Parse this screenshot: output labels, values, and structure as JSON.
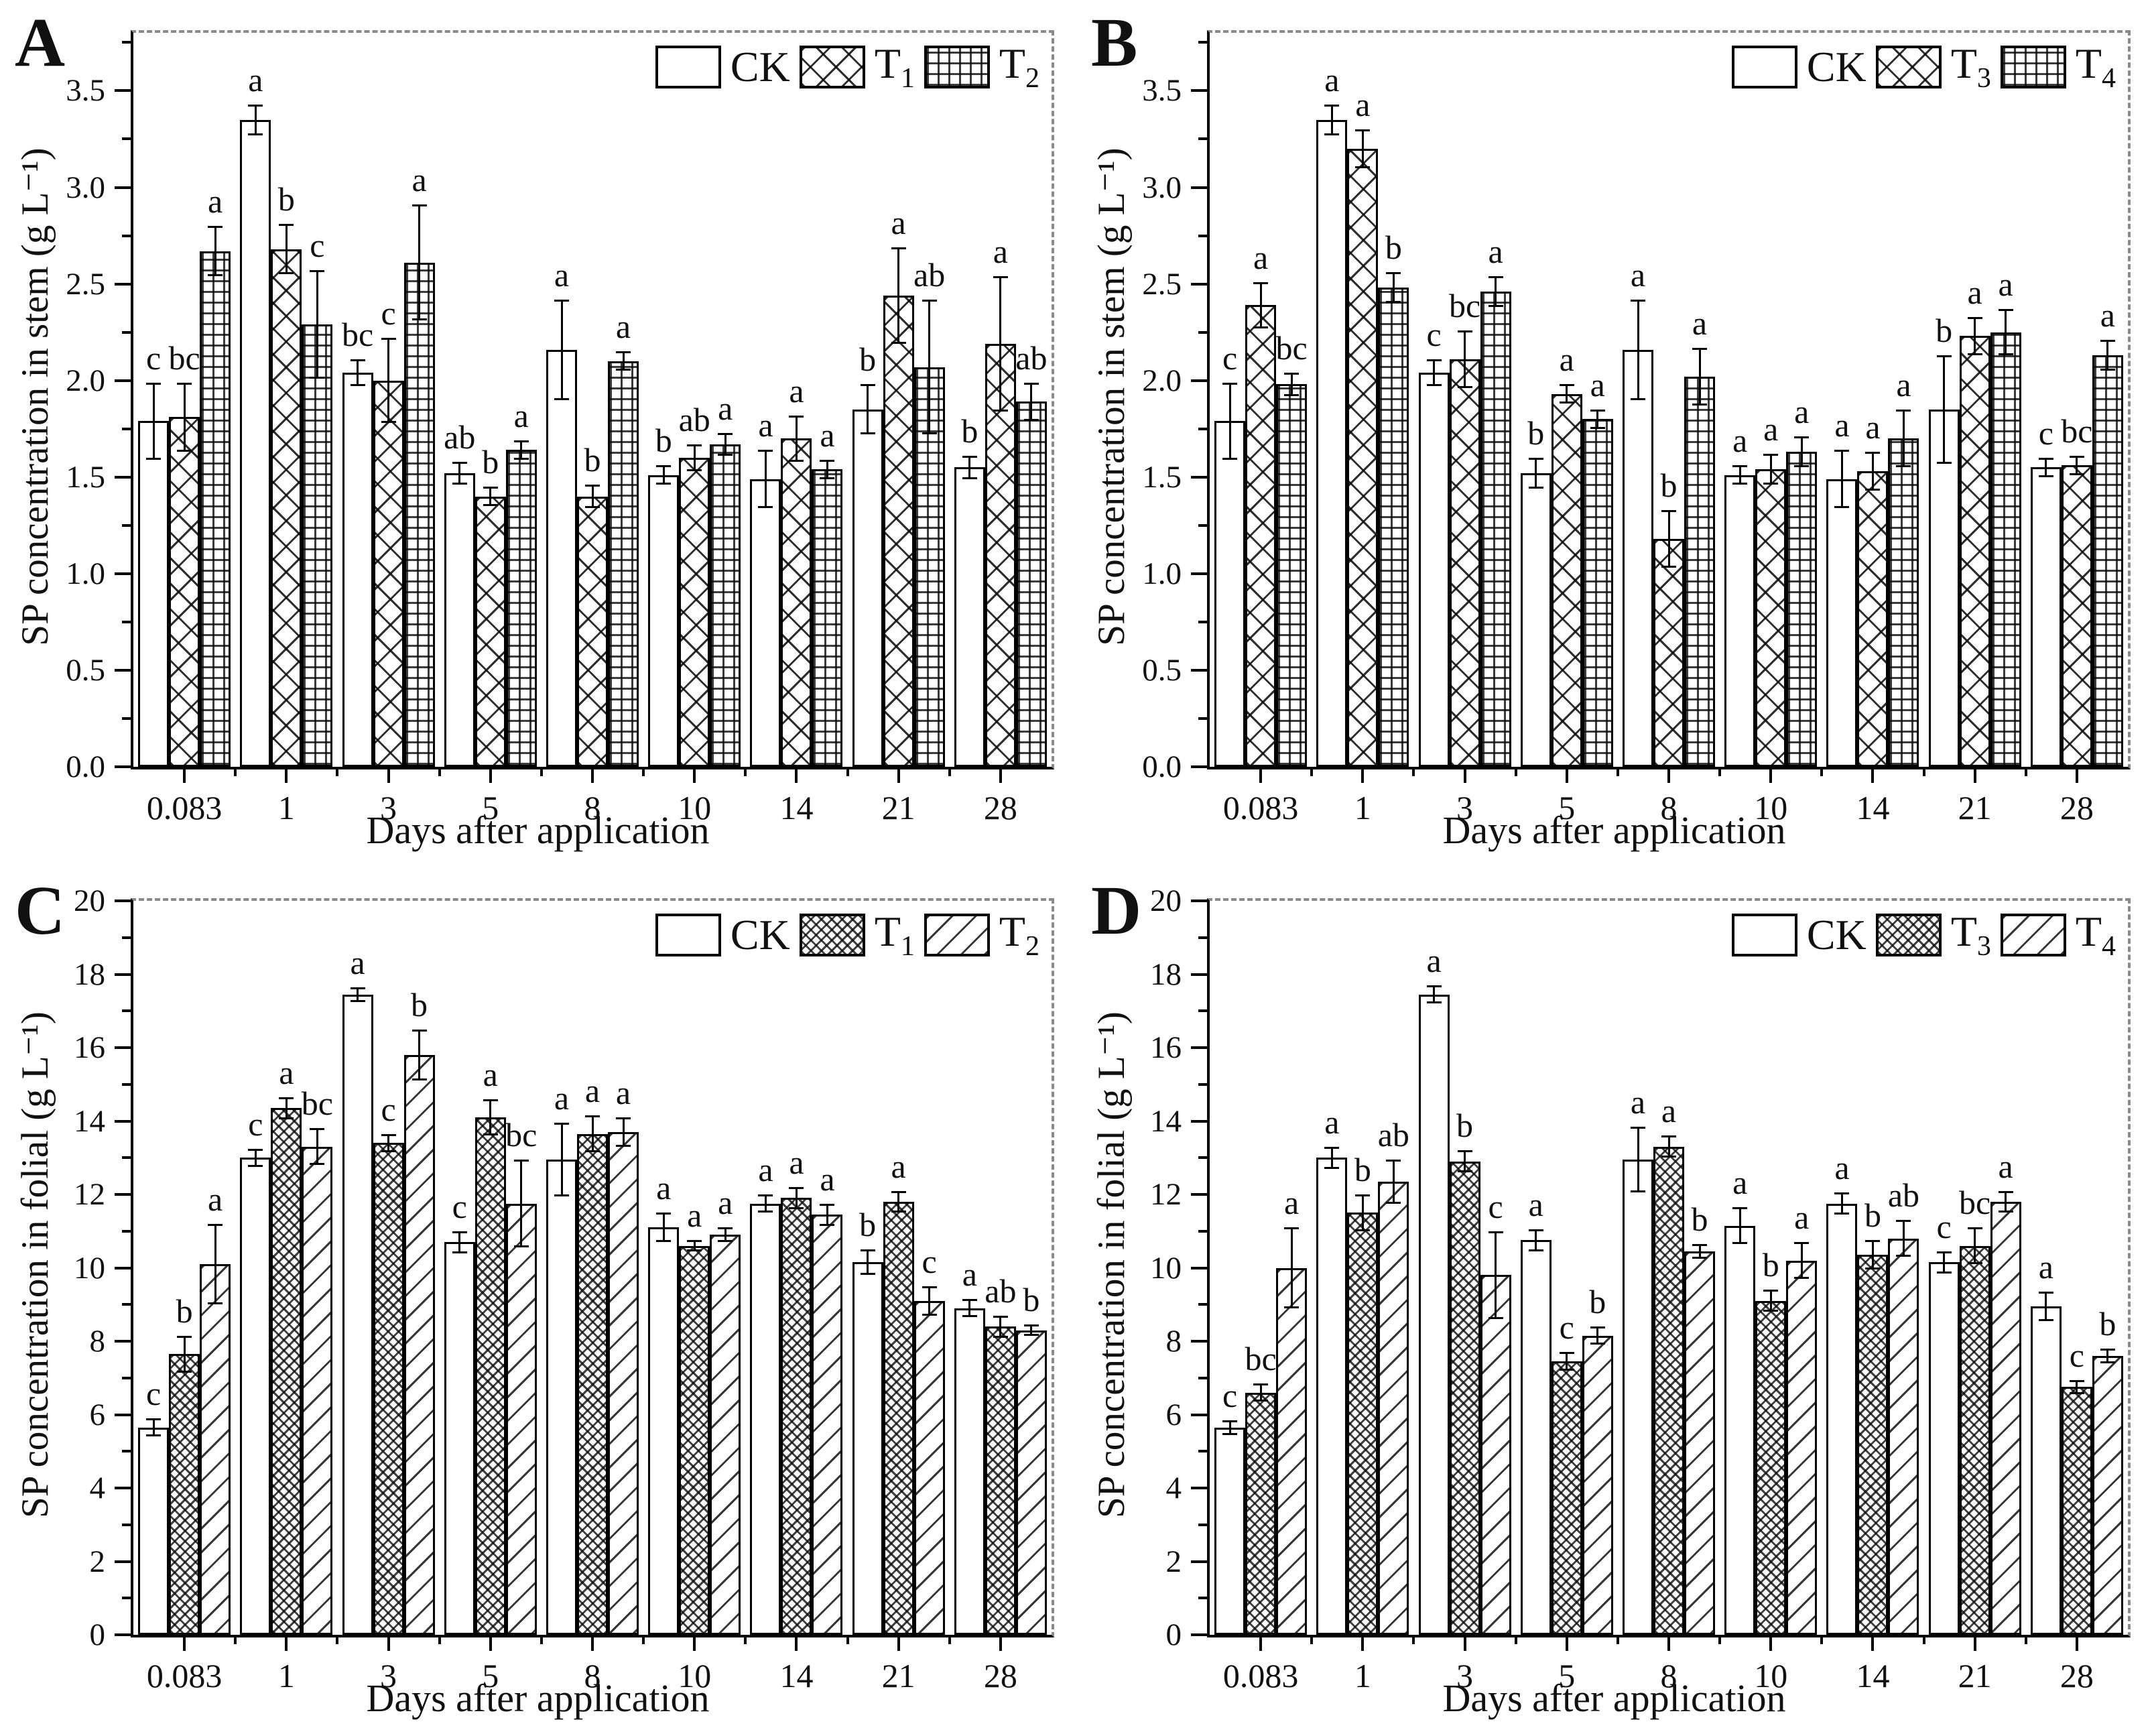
{
  "figure_title": "",
  "xlabel_shared": "Days after application",
  "chart_data": [
    {
      "panel_letter": "A",
      "type": "bar",
      "title": "SP concentration in stem - CK vs T1 vs T2",
      "ylabel": "SP concentration in stem (g L⁻¹)",
      "xlabel": "Days after application",
      "ylim": [
        0,
        3.8
      ],
      "grid": false,
      "legend_position": "top-right",
      "y_tick_values": [
        0,
        0.5,
        1.0,
        1.5,
        2.0,
        2.5,
        3.0,
        3.5
      ],
      "y_tick_labels": [
        "0.0",
        "0.5",
        "1.0",
        "1.5",
        "2.0",
        "2.5",
        "3.0",
        "3.5"
      ],
      "y_minor_step": 0.25,
      "categories": [
        "0.083",
        "1",
        "3",
        "5",
        "8",
        "10",
        "14",
        "21",
        "28"
      ],
      "legend": [
        {
          "text": "CK",
          "sub": "",
          "pattern": "plain"
        },
        {
          "text": "T",
          "sub": "1",
          "pattern": "crosshatch"
        },
        {
          "text": "T",
          "sub": "2",
          "pattern": "grid"
        }
      ],
      "series": [
        {
          "name": "CK",
          "pattern": "plain",
          "values": [
            1.79,
            3.35,
            2.04,
            1.52,
            2.16,
            1.51,
            1.49,
            1.85,
            1.55
          ],
          "errors": [
            0.2,
            0.08,
            0.07,
            0.06,
            0.26,
            0.05,
            0.15,
            0.13,
            0.06
          ],
          "letters": [
            "c",
            "a",
            "bc",
            "ab",
            "a",
            "b",
            "a",
            "b",
            "b"
          ]
        },
        {
          "name": "T1",
          "pattern": "crosshatch",
          "values": [
            1.81,
            2.68,
            2.0,
            1.4,
            1.4,
            1.6,
            1.7,
            2.44,
            2.19
          ],
          "errors": [
            0.18,
            0.13,
            0.22,
            0.05,
            0.06,
            0.07,
            0.12,
            0.25,
            0.35
          ],
          "letters": [
            "bc",
            "b",
            "c",
            "b",
            "b",
            "ab",
            "a",
            "a",
            "a"
          ]
        },
        {
          "name": "T2",
          "pattern": "grid",
          "values": [
            2.67,
            2.29,
            2.61,
            1.64,
            2.1,
            1.67,
            1.54,
            2.07,
            1.89
          ],
          "errors": [
            0.13,
            0.28,
            0.3,
            0.05,
            0.05,
            0.06,
            0.05,
            0.35,
            0.1
          ],
          "letters": [
            "a",
            "c",
            "a",
            "a",
            "a",
            "a",
            "a",
            "ab",
            "ab"
          ]
        }
      ]
    },
    {
      "panel_letter": "B",
      "type": "bar",
      "title": "SP concentration in stem - CK vs T3 vs T4",
      "ylabel": "SP concentration in stem (g L⁻¹)",
      "xlabel": "Days after application",
      "ylim": [
        0,
        3.8
      ],
      "grid": false,
      "legend_position": "top-right",
      "y_tick_values": [
        0,
        0.5,
        1.0,
        1.5,
        2.0,
        2.5,
        3.0,
        3.5
      ],
      "y_tick_labels": [
        "0.0",
        "0.5",
        "1.0",
        "1.5",
        "2.0",
        "2.5",
        "3.0",
        "3.5"
      ],
      "y_minor_step": 0.25,
      "categories": [
        "0.083",
        "1",
        "3",
        "5",
        "8",
        "10",
        "14",
        "21",
        "28"
      ],
      "legend": [
        {
          "text": "CK",
          "sub": "",
          "pattern": "plain"
        },
        {
          "text": "T",
          "sub": "3",
          "pattern": "crosshatch"
        },
        {
          "text": "T",
          "sub": "4",
          "pattern": "grid"
        }
      ],
      "series": [
        {
          "name": "CK",
          "pattern": "plain",
          "values": [
            1.79,
            3.35,
            2.04,
            1.52,
            2.16,
            1.51,
            1.49,
            1.85,
            1.55
          ],
          "errors": [
            0.2,
            0.08,
            0.07,
            0.08,
            0.26,
            0.05,
            0.15,
            0.28,
            0.05
          ],
          "letters": [
            "c",
            "a",
            "c",
            "b",
            "a",
            "a",
            "a",
            "b",
            "c"
          ]
        },
        {
          "name": "T3",
          "pattern": "crosshatch",
          "values": [
            2.39,
            3.2,
            2.11,
            1.93,
            1.18,
            1.54,
            1.53,
            2.23,
            1.56
          ],
          "errors": [
            0.12,
            0.1,
            0.15,
            0.05,
            0.15,
            0.08,
            0.1,
            0.1,
            0.05
          ],
          "letters": [
            "a",
            "a",
            "bc",
            "a",
            "b",
            "a",
            "a",
            "a",
            "bc"
          ]
        },
        {
          "name": "T4",
          "pattern": "grid",
          "values": [
            1.98,
            2.48,
            2.46,
            1.8,
            2.02,
            1.63,
            1.7,
            2.25,
            2.13
          ],
          "errors": [
            0.06,
            0.08,
            0.08,
            0.05,
            0.15,
            0.08,
            0.15,
            0.12,
            0.08
          ],
          "letters": [
            "bc",
            "b",
            "a",
            "a",
            "a",
            "a",
            "a",
            "a",
            "a"
          ]
        }
      ]
    },
    {
      "panel_letter": "C",
      "type": "bar",
      "title": "SP concentration in folial - CK vs T1 vs T2",
      "ylabel": "SP concentration in folial (g L⁻¹)",
      "xlabel": "Days after application",
      "ylim": [
        0,
        20
      ],
      "grid": false,
      "legend_position": "top-right",
      "y_tick_values": [
        0,
        2,
        4,
        6,
        8,
        10,
        12,
        14,
        16,
        18,
        20
      ],
      "y_tick_labels": [
        "0",
        "2",
        "4",
        "6",
        "8",
        "10",
        "12",
        "14",
        "16",
        "18",
        "20"
      ],
      "y_minor_step": 1,
      "categories": [
        "0.083",
        "1",
        "3",
        "5",
        "8",
        "10",
        "14",
        "21",
        "28"
      ],
      "legend": [
        {
          "text": "CK",
          "sub": "",
          "pattern": "plain"
        },
        {
          "text": "T",
          "sub": "1",
          "pattern": "checker"
        },
        {
          "text": "T",
          "sub": "2",
          "pattern": "diagonal"
        }
      ],
      "series": [
        {
          "name": "CK",
          "pattern": "plain",
          "values": [
            5.65,
            13.0,
            17.45,
            10.7,
            12.95,
            11.1,
            11.75,
            10.15,
            8.9
          ],
          "errors": [
            0.25,
            0.25,
            0.2,
            0.3,
            1.0,
            0.4,
            0.25,
            0.35,
            0.25
          ],
          "letters": [
            "c",
            "c",
            "a",
            "c",
            "a",
            "a",
            "a",
            "b",
            "a"
          ]
        },
        {
          "name": "T1",
          "pattern": "checker",
          "values": [
            7.65,
            14.35,
            13.4,
            14.1,
            13.65,
            10.6,
            11.9,
            11.8,
            8.4
          ],
          "errors": [
            0.5,
            0.3,
            0.25,
            0.5,
            0.5,
            0.15,
            0.3,
            0.3,
            0.3
          ],
          "letters": [
            "b",
            "a",
            "c",
            "a",
            "a",
            "a",
            "a",
            "a",
            "ab"
          ]
        },
        {
          "name": "T2",
          "pattern": "diagonal",
          "values": [
            10.1,
            13.3,
            15.8,
            11.75,
            13.7,
            10.9,
            11.45,
            9.1,
            8.3
          ],
          "errors": [
            1.1,
            0.5,
            0.7,
            1.2,
            0.4,
            0.2,
            0.3,
            0.4,
            0.15
          ],
          "letters": [
            "a",
            "bc",
            "b",
            "bc",
            "a",
            "a",
            "a",
            "c",
            "b"
          ]
        }
      ]
    },
    {
      "panel_letter": "D",
      "type": "bar",
      "title": "SP concentration in folial - CK vs T3 vs T4",
      "ylabel": "SP concentration in folial (g L⁻¹)",
      "xlabel": "Days after application",
      "ylim": [
        0,
        20
      ],
      "grid": false,
      "legend_position": "top-right",
      "y_tick_values": [
        0,
        2,
        4,
        6,
        8,
        10,
        12,
        14,
        16,
        18,
        20
      ],
      "y_tick_labels": [
        "0",
        "2",
        "4",
        "6",
        "8",
        "10",
        "12",
        "14",
        "16",
        "18",
        "20"
      ],
      "y_minor_step": 1,
      "categories": [
        "0.083",
        "1",
        "3",
        "5",
        "8",
        "10",
        "14",
        "21",
        "28"
      ],
      "legend": [
        {
          "text": "CK",
          "sub": "",
          "pattern": "plain"
        },
        {
          "text": "T",
          "sub": "3",
          "pattern": "checker"
        },
        {
          "text": "T",
          "sub": "4",
          "pattern": "diagonal"
        }
      ],
      "series": [
        {
          "name": "CK",
          "pattern": "plain",
          "values": [
            5.65,
            13.0,
            17.45,
            10.75,
            12.95,
            11.15,
            11.75,
            10.15,
            8.95
          ],
          "errors": [
            0.2,
            0.3,
            0.25,
            0.3,
            0.9,
            0.5,
            0.3,
            0.3,
            0.4
          ],
          "letters": [
            "c",
            "a",
            "a",
            "a",
            "a",
            "a",
            "a",
            "c",
            "a"
          ]
        },
        {
          "name": "T3",
          "pattern": "checker",
          "values": [
            6.6,
            11.5,
            12.9,
            7.45,
            13.3,
            9.1,
            10.35,
            10.6,
            6.75
          ],
          "errors": [
            0.25,
            0.5,
            0.3,
            0.25,
            0.3,
            0.3,
            0.4,
            0.5,
            0.2
          ],
          "letters": [
            "bc",
            "b",
            "b",
            "c",
            "a",
            "b",
            "b",
            "bc",
            "c"
          ]
        },
        {
          "name": "T4",
          "pattern": "diagonal",
          "values": [
            10.0,
            12.35,
            9.8,
            8.15,
            10.45,
            10.2,
            10.8,
            11.8,
            7.6
          ],
          "errors": [
            1.1,
            0.6,
            1.2,
            0.25,
            0.2,
            0.5,
            0.5,
            0.3,
            0.2
          ],
          "letters": [
            "a",
            "ab",
            "c",
            "b",
            "b",
            "a",
            "ab",
            "a",
            "b"
          ]
        }
      ]
    }
  ]
}
